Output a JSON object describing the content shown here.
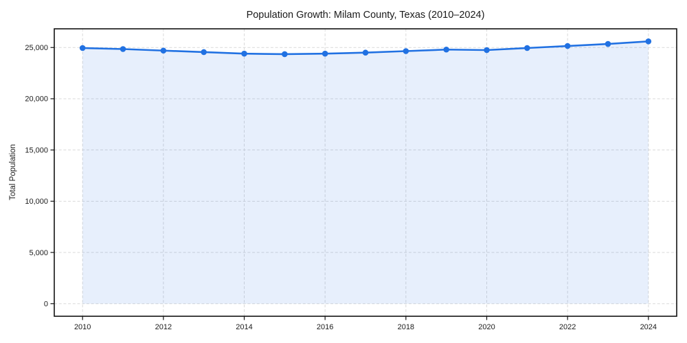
{
  "chart_data": {
    "type": "area",
    "title": "Population Growth: Milam County, Texas (2010–2024)",
    "xlabel": "",
    "ylabel": "Total Population",
    "x": [
      2010,
      2011,
      2012,
      2013,
      2014,
      2015,
      2016,
      2017,
      2018,
      2019,
      2020,
      2021,
      2022,
      2023,
      2024
    ],
    "series": [
      {
        "name": "Total Population",
        "values": [
          24950,
          24850,
          24700,
          24550,
          24400,
          24350,
          24400,
          24500,
          24650,
          24800,
          24750,
          24950,
          25150,
          25350,
          25600
        ]
      }
    ],
    "fill_to": 0,
    "xlim": [
      2009.3,
      2024.7
    ],
    "ylim": [
      -1225,
      26825
    ],
    "xticks": [
      2010,
      2012,
      2014,
      2016,
      2018,
      2020,
      2022,
      2024
    ],
    "xtick_labels": [
      "2010",
      "2012",
      "2014",
      "2016",
      "2018",
      "2020",
      "2022",
      "2024"
    ],
    "yticks": [
      0,
      5000,
      10000,
      15000,
      20000,
      25000
    ],
    "ytick_labels": [
      "0",
      "5,000",
      "10,000",
      "15,000",
      "20,000",
      "25,000"
    ],
    "grid": "dashed",
    "legend": "none",
    "colors": {
      "line": "#2171e2",
      "marker": "#2171e2",
      "fill": "rgba(33, 113, 226, 0.11)",
      "grid": "#d9d9d9",
      "spine": "#111111",
      "text": "#1a1a1a",
      "background": "#ffffff"
    }
  }
}
